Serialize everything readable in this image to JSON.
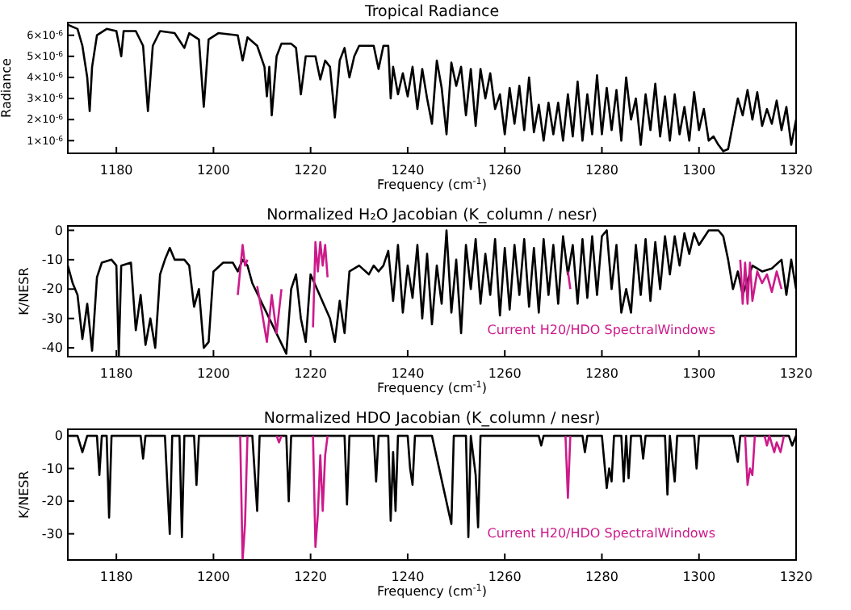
{
  "chart_data": [
    {
      "type": "line",
      "title": "Tropical Radiance",
      "xlabel": "Frequency (cm$^{-1}$)",
      "ylabel": "Radiance",
      "xlim": [
        1170,
        1320
      ],
      "ylim": [
        4e-07,
        6.6e-06
      ],
      "xticks": [
        1180,
        1200,
        1220,
        1240,
        1260,
        1280,
        1300,
        1320
      ],
      "yticks": [
        {
          "value": 1e-06,
          "label": "1×10$^{-6}$"
        },
        {
          "value": 2e-06,
          "label": "2×10$^{-6}$"
        },
        {
          "value": 3e-06,
          "label": "3×10$^{-6}$"
        },
        {
          "value": 4e-06,
          "label": "4×10$^{-6}$"
        },
        {
          "value": 5e-06,
          "label": "5×10$^{-6}$"
        },
        {
          "value": 6e-06,
          "label": "6×10$^{-6}$"
        }
      ],
      "series": [
        {
          "color": "#000000",
          "x": [
            1170,
            1172,
            1173,
            1174,
            1174.5,
            1175,
            1176,
            1178,
            1180,
            1181,
            1181.5,
            1184,
            1185.5,
            1186.5,
            1187.5,
            1189,
            1192,
            1194,
            1195,
            1197,
            1198,
            1199,
            1201,
            1205,
            1206,
            1207,
            1209,
            1210.5,
            1211,
            1211.5,
            1212,
            1213,
            1214,
            1216,
            1217,
            1218,
            1219,
            1221,
            1222,
            1223,
            1224,
            1225,
            1226,
            1227,
            1228,
            1229,
            1230,
            1233,
            1234,
            1235,
            1236,
            1236.5,
            1237,
            1238,
            1239,
            1240,
            1241,
            1242,
            1243,
            1244,
            1245,
            1246,
            1247,
            1248,
            1249,
            1250,
            1251,
            1252,
            1253,
            1254,
            1255,
            1256,
            1257,
            1258,
            1259,
            1260,
            1261,
            1262,
            1263,
            1264,
            1265,
            1266,
            1267,
            1268,
            1269,
            1270,
            1271,
            1272,
            1273,
            1274,
            1275,
            1276,
            1277,
            1278,
            1279,
            1280,
            1281,
            1282,
            1283,
            1284,
            1285,
            1286,
            1287,
            1288,
            1289,
            1290,
            1291,
            1292,
            1293,
            1294,
            1295,
            1296,
            1297,
            1298,
            1299,
            1300,
            1301,
            1302,
            1303,
            1304,
            1305,
            1306,
            1308,
            1309,
            1310,
            1311,
            1312,
            1313,
            1314,
            1315,
            1316,
            1317,
            1318,
            1319,
            1320
          ],
          "values": [
            6.5e-06,
            6.3e-06,
            5.5e-06,
            4e-06,
            2.4e-06,
            4.5e-06,
            6e-06,
            6.3e-06,
            6.2e-06,
            5e-06,
            6.2e-06,
            6.2e-06,
            5.5e-06,
            2.4e-06,
            5.5e-06,
            6.2e-06,
            6.1e-06,
            5.4e-06,
            6.1e-06,
            5.8e-06,
            2.6e-06,
            5.8e-06,
            6.1e-06,
            6e-06,
            4.8e-06,
            5.9e-06,
            5.5e-06,
            4.5e-06,
            3.1e-06,
            4.5e-06,
            2.2e-06,
            5e-06,
            5.6e-06,
            5.6e-06,
            5.4e-06,
            3.2e-06,
            5e-06,
            5e-06,
            3.9e-06,
            4.8e-06,
            4.5e-06,
            2.1e-06,
            4.8e-06,
            5.4e-06,
            4e-06,
            5e-06,
            5.5e-06,
            5.5e-06,
            4.4e-06,
            5.5e-06,
            5.5e-06,
            3e-06,
            4.5e-06,
            3.2e-06,
            4.2e-06,
            3.1e-06,
            4.5e-06,
            2.5e-06,
            4.4e-06,
            3e-06,
            1.8e-06,
            4.8e-06,
            3.5e-06,
            1.3e-06,
            4.7e-06,
            3.6e-06,
            4.5e-06,
            2.2e-06,
            4.4e-06,
            1.7e-06,
            4.4e-06,
            3e-06,
            4.2e-06,
            2.5e-06,
            3.2e-06,
            1.3e-06,
            3.5e-06,
            1.8e-06,
            3.6e-06,
            1.5e-06,
            4e-06,
            1.4e-06,
            2.7e-06,
            1e-06,
            2.8e-06,
            1.3e-06,
            2.8e-06,
            1e-06,
            3.2e-06,
            1.2e-06,
            3.8e-06,
            1e-06,
            3.2e-06,
            1.3e-06,
            4.1e-06,
            1.3e-06,
            3.5e-06,
            1.5e-06,
            3.4e-06,
            1e-06,
            4e-06,
            2e-06,
            3e-06,
            8e-07,
            3.2e-06,
            1.5e-06,
            3.7e-06,
            1.2e-06,
            3.1e-06,
            1e-06,
            3.2e-06,
            1.3e-06,
            2.6e-06,
            1e-06,
            3.3e-06,
            1.5e-06,
            2.5e-06,
            1e-06,
            1.2e-06,
            8e-07,
            5e-07,
            6e-07,
            3e-06,
            2.2e-06,
            3.4e-06,
            2e-06,
            3.3e-06,
            1.7e-06,
            2.5e-06,
            1.8e-06,
            2.9e-06,
            1.5e-06,
            2.6e-06,
            8e-07,
            2e-06
          ]
        }
      ]
    },
    {
      "type": "line",
      "title": "Normalized H₂O Jacobian (K_column / nesr)",
      "xlabel": "Frequency (cm$^{-1}$)",
      "ylabel": "K/NESR",
      "xlim": [
        1170,
        1320
      ],
      "ylim": [
        -43,
        1.5
      ],
      "xticks": [
        1180,
        1200,
        1220,
        1240,
        1260,
        1280,
        1300,
        1320
      ],
      "yticks": [
        -40,
        -30,
        -20,
        -10,
        0
      ],
      "legend": "bottom right",
      "series": [
        {
          "color": "#000000",
          "x": [
            1170,
            1171,
            1172,
            1173,
            1174,
            1175,
            1176,
            1177,
            1179,
            1180,
            1180.5,
            1181,
            1183,
            1184,
            1185,
            1186,
            1187,
            1188,
            1189,
            1190,
            1191,
            1192,
            1194,
            1195,
            1196,
            1197,
            1198,
            1199,
            1200,
            1202,
            1204,
            1205,
            1206,
            1207,
            1208,
            1215,
            1216,
            1217,
            1218,
            1219,
            1220,
            1224,
            1225,
            1226,
            1227,
            1228,
            1230,
            1232,
            1233,
            1234,
            1235,
            1236,
            1237,
            1238,
            1239,
            1240,
            1241,
            1242,
            1243,
            1244,
            1245,
            1246,
            1247,
            1248,
            1249,
            1250,
            1251,
            1252,
            1253,
            1254,
            1255,
            1256,
            1257,
            1258,
            1259,
            1260,
            1261,
            1262,
            1263,
            1264,
            1265,
            1266,
            1267,
            1268,
            1269,
            1270,
            1271,
            1272,
            1273,
            1274,
            1275,
            1276,
            1277,
            1278,
            1279,
            1280,
            1281,
            1282,
            1283,
            1284,
            1285,
            1286,
            1287,
            1288,
            1289,
            1290,
            1291,
            1292,
            1293,
            1294,
            1295,
            1296,
            1297,
            1298,
            1299,
            1300,
            1302,
            1304,
            1305,
            1306,
            1307,
            1308,
            1309,
            1311,
            1313,
            1315,
            1317,
            1318,
            1319,
            1320
          ],
          "values": [
            -12,
            -18,
            -22,
            -37,
            -25,
            -41,
            -16,
            -11,
            -10,
            -12,
            -43,
            -12,
            -11,
            -34,
            -22,
            -39,
            -30,
            -40,
            -15,
            -10,
            -6,
            -10,
            -10,
            -12,
            -26,
            -20,
            -40,
            -38,
            -14,
            -11,
            -11,
            -14,
            -10,
            -12,
            -18,
            -42,
            -20,
            -15,
            -30,
            -38,
            -15,
            -30,
            -38,
            -24,
            -35,
            -14,
            -12,
            -15,
            -12,
            -14,
            -12,
            -7,
            -24,
            -5,
            -28,
            -12,
            -23,
            -5,
            -30,
            -8,
            -32,
            -12,
            -25,
            0,
            -28,
            -10,
            -35,
            -5,
            -20,
            -3,
            -25,
            -8,
            -22,
            -3,
            -29,
            -6,
            -27,
            -5,
            -22,
            -3,
            -26,
            -6,
            -28,
            -3,
            -22,
            -5,
            -25,
            -2,
            -15,
            -5,
            -25,
            -3,
            -23,
            -2,
            -22,
            -2,
            0,
            -20,
            -5,
            -28,
            -20,
            -28,
            -5,
            -22,
            -3,
            -24,
            -4,
            -20,
            -2,
            -15,
            -2,
            -12,
            -1,
            -8,
            -1,
            -5,
            0,
            0,
            -2,
            -10,
            -20,
            -14,
            -22,
            -12,
            -14,
            -13,
            -10,
            -22,
            -10,
            -20
          ]
        },
        {
          "name": "Current H20/HDO SpectralWindows",
          "color": "#cc1a8a",
          "x": [
            1205,
            1206,
            1206.5,
            1207,
            1207.5,
            1209,
            1210,
            1211,
            1212,
            1213,
            1214,
            1214.5,
            1220.5,
            1221,
            1221.5,
            1222,
            1222.5,
            1223,
            1223.5,
            1224,
            1273,
            1273.5,
            1274,
            1308.5,
            1309,
            1309.5,
            1310,
            1310.5,
            1311,
            1312,
            1313,
            1314,
            1315,
            1316,
            1317
          ],
          "values": [
            -22,
            -5,
            -12,
            -10,
            null,
            -19,
            -28,
            -38,
            -22,
            -35,
            -20,
            null,
            -33,
            -4,
            -14,
            -4,
            -12,
            -5,
            -16,
            null,
            -14,
            -20,
            null,
            -10,
            -25,
            -11,
            -25,
            -11,
            -24,
            -14,
            -18,
            -15,
            -21,
            -14,
            -20
          ]
        }
      ]
    },
    {
      "type": "line",
      "title": "Normalized HDO Jacobian (K_column / nesr)",
      "xlabel": "Frequency (cm$^{-1}$)",
      "ylabel": "K/NESR",
      "xlim": [
        1170,
        1320
      ],
      "ylim": [
        -38,
        2
      ],
      "xticks": [
        1180,
        1200,
        1220,
        1240,
        1260,
        1280,
        1300,
        1320
      ],
      "yticks": [
        -30,
        -20,
        -10,
        0
      ],
      "legend": "bottom right",
      "series": [
        {
          "color": "#000000",
          "x": [
            1170,
            1172,
            1173,
            1174,
            1176,
            1176.5,
            1177,
            1178,
            1178.5,
            1179,
            1185,
            1185.5,
            1186,
            1190,
            1190.5,
            1191,
            1191.5,
            1193,
            1193.5,
            1194,
            1196,
            1196.5,
            1197,
            1208,
            1209,
            1209.5,
            1215,
            1215.5,
            1216,
            1227,
            1227.5,
            1228,
            1233,
            1233.5,
            1234,
            1236,
            1236.5,
            1237,
            1237.5,
            1238,
            1240,
            1240.5,
            1241,
            1241.5,
            1245,
            1249,
            1249.5,
            1252,
            1252.5,
            1253,
            1254,
            1254.5,
            1255,
            1258,
            1267,
            1267.5,
            1268,
            1276,
            1276.5,
            1277,
            1280,
            1281,
            1281.5,
            1282,
            1282.5,
            1284,
            1284.5,
            1285,
            1285.5,
            1286,
            1288,
            1288.5,
            1289,
            1293,
            1293.5,
            1294,
            1295,
            1295.5,
            1299,
            1299.5,
            1300,
            1307,
            1308,
            1308.5,
            1312,
            1318.5,
            1319.2,
            1320
          ],
          "values": [
            0,
            0,
            -5,
            0,
            0,
            -12,
            0,
            0,
            -25,
            0,
            0,
            -7,
            0,
            0,
            -15,
            -30,
            0,
            0,
            -31,
            0,
            0,
            -15,
            0,
            0,
            -23,
            0,
            0,
            -20,
            0,
            0,
            -21,
            0,
            0,
            -14,
            0,
            0,
            -26,
            -5,
            -23,
            0,
            0,
            -10,
            -15,
            0,
            0,
            -27,
            0,
            0,
            -31,
            0,
            -12,
            -28,
            0,
            0,
            0,
            -3,
            0,
            0,
            -5,
            0,
            0,
            -16,
            -10,
            -14,
            0,
            0,
            -14,
            0,
            -13,
            0,
            0,
            -7,
            0,
            0,
            -18,
            0,
            -14,
            0,
            0,
            -10,
            0,
            0,
            -8,
            0,
            0,
            0,
            -3,
            0
          ]
        },
        {
          "name": "Current H20/HDO  SpectralWindows",
          "color": "#cc1a8a",
          "x": [
            1205.5,
            1206,
            1206.5,
            1207,
            1207.5,
            1213,
            1213.5,
            1214,
            1214.5,
            1220.5,
            1221,
            1221.5,
            1222,
            1222.5,
            1223,
            1223.5,
            1224,
            1272.5,
            1273,
            1273.5,
            1274,
            1309.5,
            1310,
            1310.5,
            1311,
            1311.5,
            1312,
            1313.5,
            1314,
            1314.5,
            1315.5,
            1316,
            1316.8,
            1317.5
          ],
          "values": [
            0,
            -38,
            -27,
            0,
            null,
            0,
            -2,
            0,
            null,
            0,
            -34,
            -24,
            -6,
            -23,
            -6,
            0,
            null,
            0,
            -19,
            0,
            null,
            0,
            -15,
            -10,
            -12,
            0,
            null,
            0,
            -3,
            0,
            -5,
            -2,
            -5,
            0
          ]
        }
      ]
    }
  ]
}
